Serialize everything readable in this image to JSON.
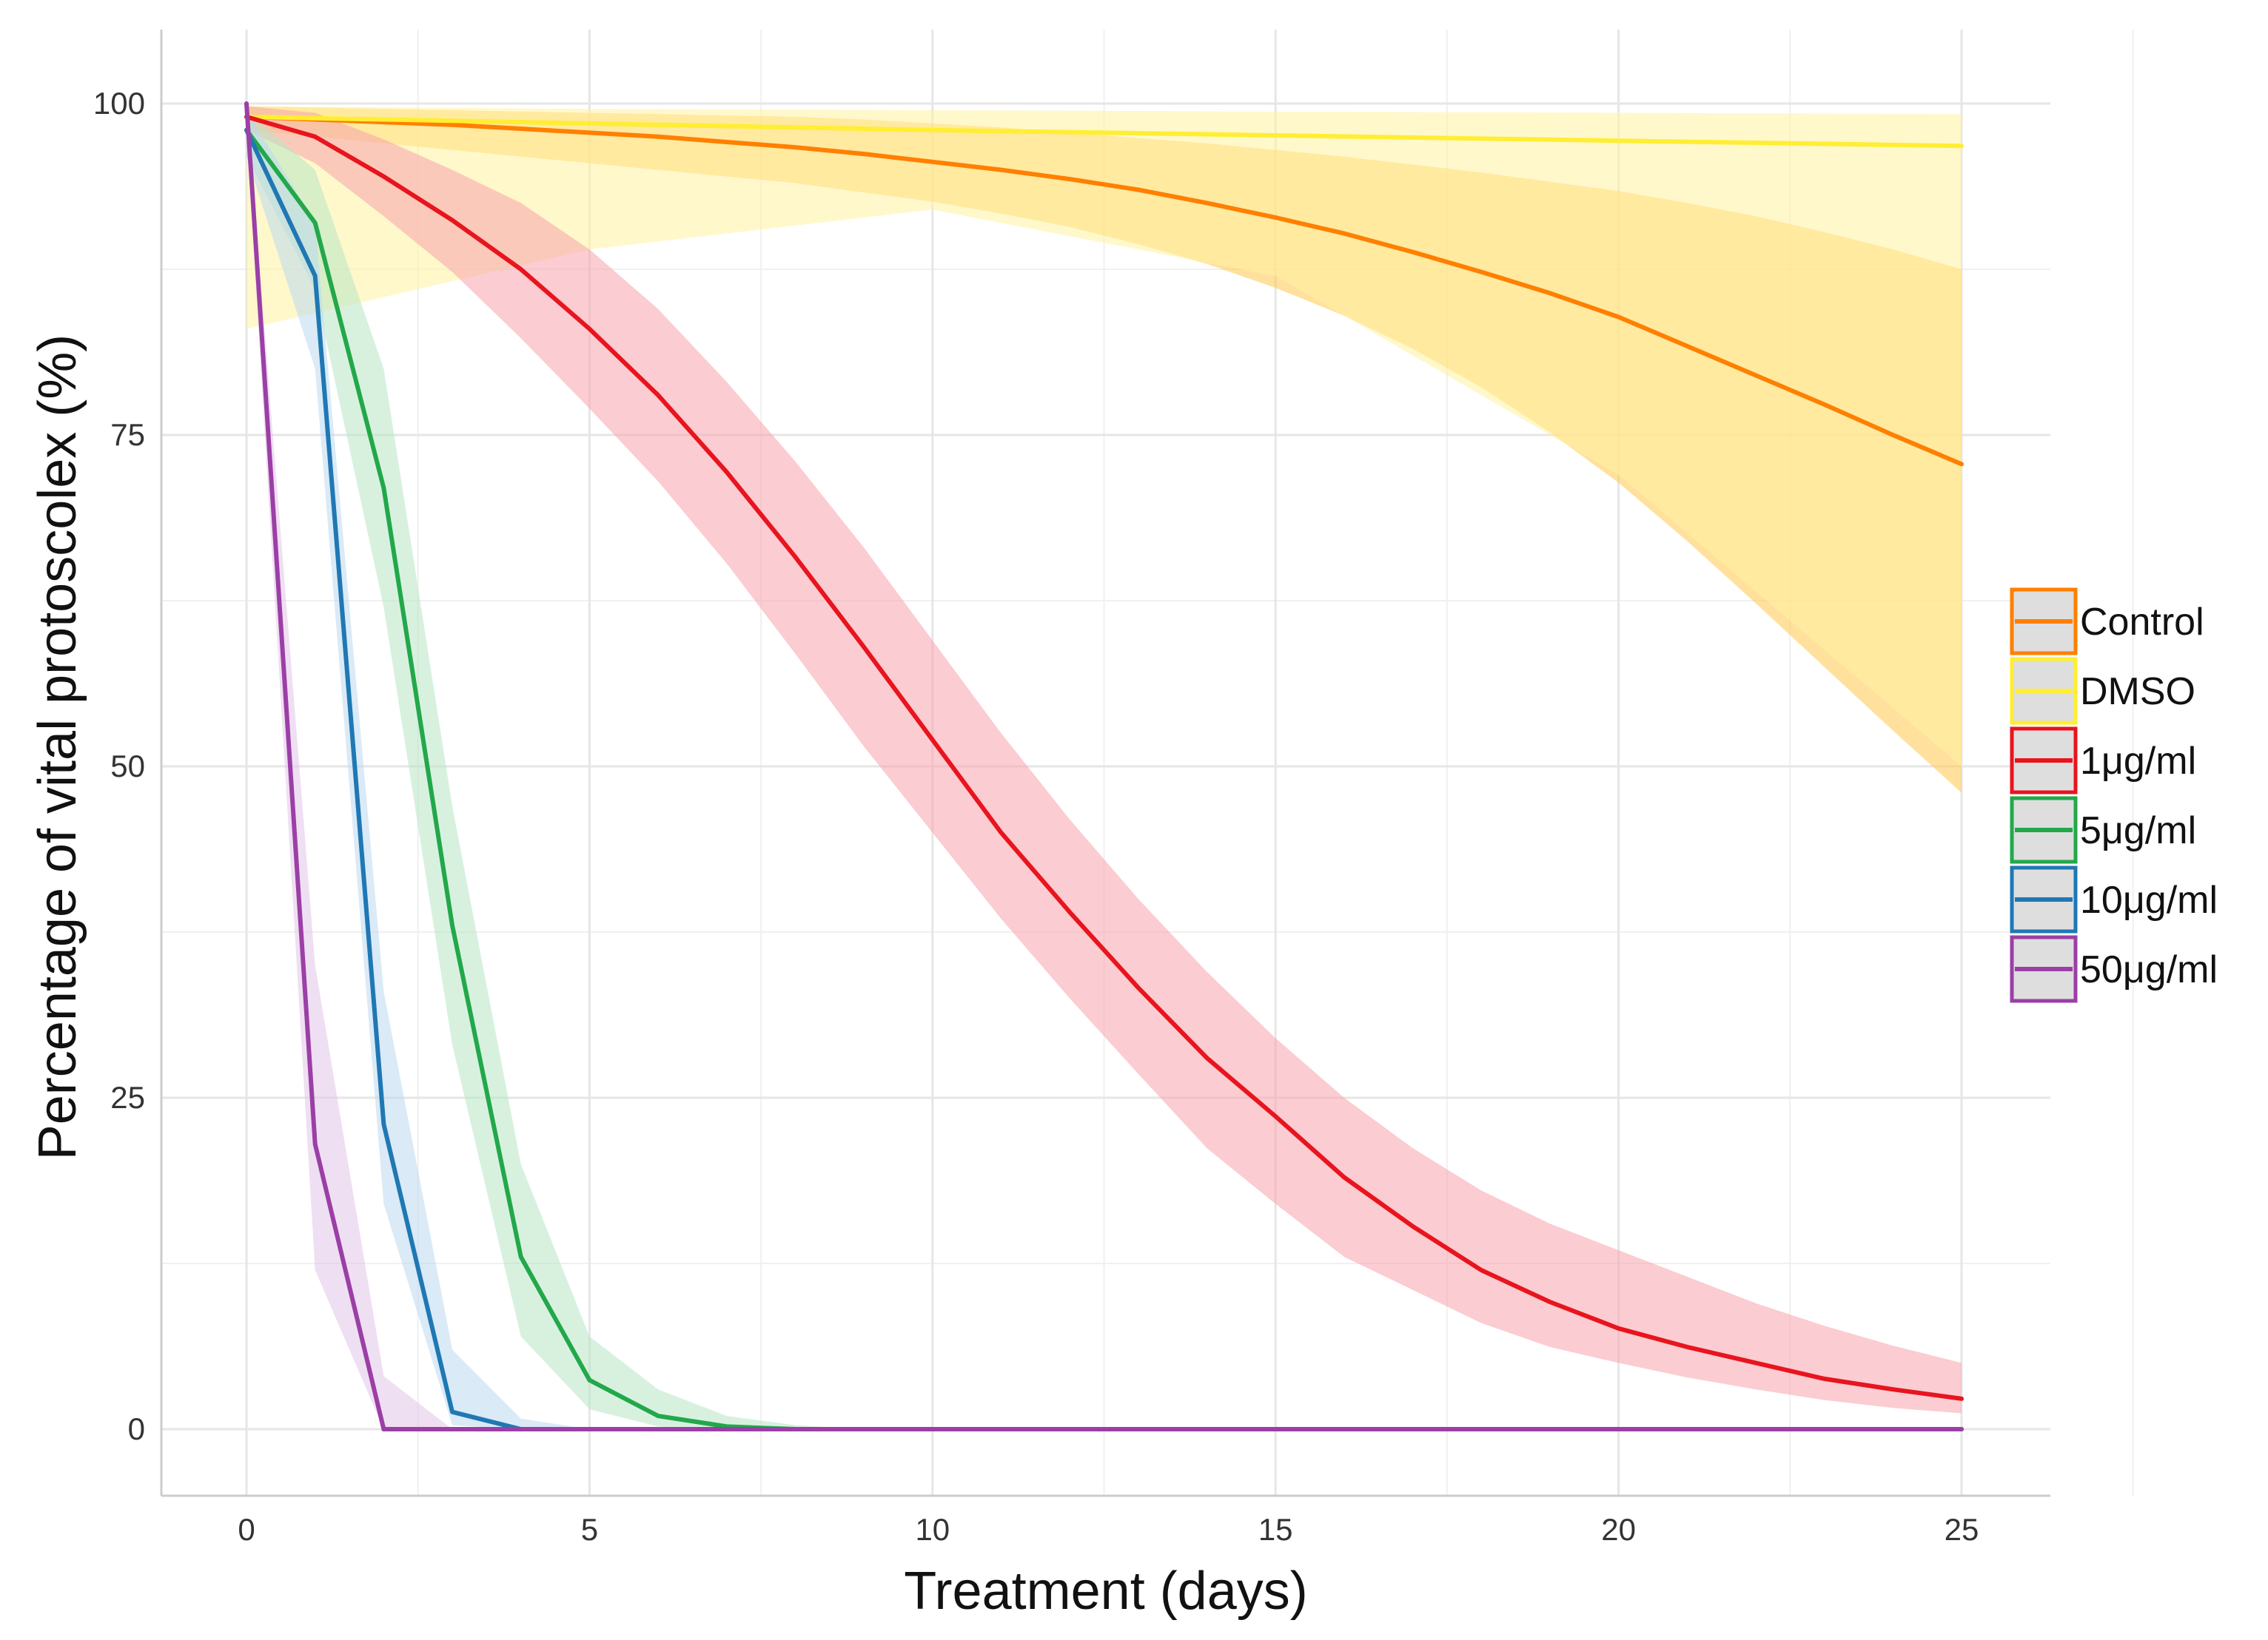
{
  "chart_data": {
    "type": "line",
    "title": "",
    "xlabel": "Treatment (days)",
    "ylabel": "Percentage of vital protoscolex (%)",
    "xlim": [
      0,
      25
    ],
    "ylim": [
      0,
      100
    ],
    "xticks": [
      0,
      5,
      10,
      15,
      20,
      25
    ],
    "yticks": [
      0,
      25,
      50,
      75,
      100
    ],
    "grid": true,
    "legend_position": "right",
    "series": [
      {
        "name": "Control",
        "color": "#ff7f00",
        "band_color": "#ffc94d",
        "x": [
          0,
          1,
          2,
          3,
          4,
          5,
          6,
          7,
          8,
          9,
          10,
          11,
          12,
          13,
          14,
          15,
          16,
          17,
          18,
          19,
          20,
          21,
          22,
          23,
          24,
          25
        ],
        "y": [
          99,
          98.8,
          98.6,
          98.4,
          98.1,
          97.8,
          97.5,
          97.1,
          96.7,
          96.2,
          95.6,
          95.0,
          94.3,
          93.5,
          92.5,
          91.4,
          90.2,
          88.8,
          87.3,
          85.7,
          83.9,
          81.7,
          79.5,
          77.3,
          75.0,
          72.8
        ],
        "lower": [
          98,
          97.5,
          97,
          96.5,
          96,
          95.5,
          95,
          94.5,
          94,
          93.3,
          92.6,
          91.7,
          90.7,
          89.4,
          87.9,
          86.1,
          84.0,
          81.5,
          78.6,
          75.2,
          71.4,
          67.0,
          62.3,
          57.5,
          52.7,
          48.0
        ],
        "upper": [
          99.8,
          99.7,
          99.6,
          99.5,
          99.4,
          99.3,
          99.2,
          99.1,
          99.0,
          98.8,
          98.5,
          98.2,
          97.8,
          97.4,
          97.0,
          96.5,
          96.0,
          95.4,
          94.8,
          94.1,
          93.4,
          92.5,
          91.5,
          90.3,
          89.0,
          87.5
        ]
      },
      {
        "name": "DMSO",
        "color": "#ffee33",
        "band_color": "#fff3a0",
        "x": [
          0,
          5,
          10,
          15,
          20,
          25
        ],
        "y": [
          99,
          98.5,
          98.0,
          97.6,
          97.2,
          96.8
        ],
        "lower": [
          83,
          89,
          92,
          87,
          72,
          50
        ],
        "upper": [
          99.8,
          99.6,
          99.5,
          99.4,
          99.3,
          99.2
        ]
      },
      {
        "name": "1μg/ml",
        "color": "#e8141e",
        "band_color": "#f7a3ab",
        "x": [
          0,
          1,
          2,
          3,
          4,
          5,
          6,
          7,
          8,
          9,
          10,
          11,
          12,
          13,
          14,
          15,
          16,
          17,
          18,
          19,
          20,
          21,
          22,
          23,
          24,
          25
        ],
        "y": [
          99,
          97.5,
          94.5,
          91.2,
          87.5,
          83.0,
          78.0,
          72.2,
          65.8,
          59.0,
          52.0,
          45.0,
          39.0,
          33.3,
          28.0,
          23.6,
          19.0,
          15.3,
          12.0,
          9.6,
          7.6,
          6.2,
          5.0,
          3.8,
          3.0,
          2.3
        ],
        "lower": [
          98,
          95.5,
          91.5,
          87.3,
          82.3,
          77.0,
          71.5,
          65.3,
          58.5,
          51.5,
          45.0,
          38.5,
          32.5,
          26.8,
          21.2,
          17.0,
          13.0,
          10.5,
          8.0,
          6.2,
          5.0,
          3.9,
          3.0,
          2.2,
          1.6,
          1.2
        ],
        "upper": [
          99.8,
          99.3,
          97.3,
          95.0,
          92.5,
          89.0,
          84.5,
          79.0,
          73.0,
          66.5,
          59.5,
          52.5,
          46.0,
          40.0,
          34.5,
          29.5,
          25.0,
          21.2,
          18.0,
          15.5,
          13.5,
          11.5,
          9.5,
          7.8,
          6.3,
          5.0
        ]
      },
      {
        "name": "5μg/ml",
        "color": "#22a84a",
        "band_color": "#b8e6c4",
        "x": [
          0,
          1,
          2,
          3,
          4,
          5,
          6,
          7,
          8,
          9,
          10,
          11,
          12,
          13,
          14,
          15,
          16,
          17,
          18,
          19,
          20,
          21,
          22,
          23,
          24,
          25
        ],
        "y": [
          98,
          91,
          71,
          38,
          13,
          3.7,
          1.0,
          0.2,
          0,
          0,
          0,
          0,
          0,
          0,
          0,
          0,
          0,
          0,
          0,
          0,
          0,
          0,
          0,
          0,
          0,
          0
        ],
        "lower": [
          96,
          86,
          62,
          29,
          7,
          1.5,
          0.2,
          0,
          0,
          0,
          0,
          0,
          0,
          0,
          0,
          0,
          0,
          0,
          0,
          0,
          0,
          0,
          0,
          0,
          0,
          0
        ],
        "upper": [
          99.5,
          95,
          80,
          47,
          20,
          7.0,
          3.0,
          1.0,
          0.3,
          0,
          0,
          0,
          0,
          0,
          0,
          0,
          0,
          0,
          0,
          0,
          0,
          0,
          0,
          0,
          0,
          0
        ]
      },
      {
        "name": "10μg/ml",
        "color": "#1f78b4",
        "band_color": "#bbd9ee",
        "x": [
          0,
          1,
          2,
          3,
          4,
          5,
          6,
          7,
          8,
          9,
          10,
          11,
          12,
          13,
          14,
          15,
          16,
          17,
          18,
          19,
          20,
          21,
          22,
          23,
          24,
          25
        ],
        "y": [
          98,
          87,
          23,
          1.3,
          0,
          0,
          0,
          0,
          0,
          0,
          0,
          0,
          0,
          0,
          0,
          0,
          0,
          0,
          0,
          0,
          0,
          0,
          0,
          0,
          0,
          0
        ],
        "lower": [
          96,
          80,
          17,
          0.3,
          0,
          0,
          0,
          0,
          0,
          0,
          0,
          0,
          0,
          0,
          0,
          0,
          0,
          0,
          0,
          0,
          0,
          0,
          0,
          0,
          0,
          0
        ],
        "upper": [
          99.5,
          91,
          33,
          6,
          0.8,
          0,
          0,
          0,
          0,
          0,
          0,
          0,
          0,
          0,
          0,
          0,
          0,
          0,
          0,
          0,
          0,
          0,
          0,
          0,
          0,
          0
        ]
      },
      {
        "name": "50μg/ml",
        "color": "#9b3fa6",
        "band_color": "#e1c4e8",
        "x": [
          0,
          1,
          2,
          3,
          4,
          5,
          6,
          7,
          8,
          9,
          10,
          11,
          12,
          13,
          14,
          15,
          16,
          17,
          18,
          19,
          20,
          21,
          22,
          23,
          24,
          25
        ],
        "y": [
          100,
          21.5,
          0,
          0,
          0,
          0,
          0,
          0,
          0,
          0,
          0,
          0,
          0,
          0,
          0,
          0,
          0,
          0,
          0,
          0,
          0,
          0,
          0,
          0,
          0,
          0
        ],
        "lower": [
          98,
          12,
          0,
          0,
          0,
          0,
          0,
          0,
          0,
          0,
          0,
          0,
          0,
          0,
          0,
          0,
          0,
          0,
          0,
          0,
          0,
          0,
          0,
          0,
          0,
          0
        ],
        "upper": [
          100,
          35,
          4,
          0,
          0,
          0,
          0,
          0,
          0,
          0,
          0,
          0,
          0,
          0,
          0,
          0,
          0,
          0,
          0,
          0,
          0,
          0,
          0,
          0,
          0,
          0
        ]
      }
    ]
  }
}
